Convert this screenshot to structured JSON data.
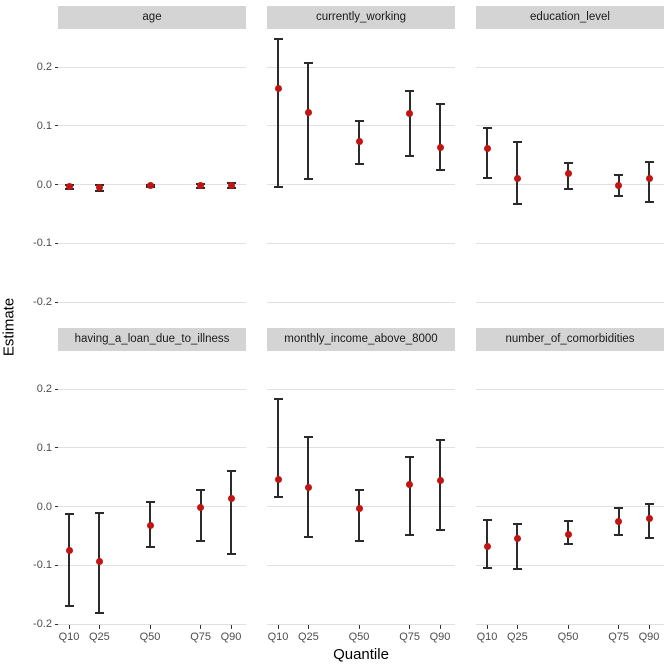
{
  "colors": {
    "point": "#C11414",
    "errorbar": "#2B2B2B",
    "gridline": "#E0E0E0",
    "strip_bg": "#D4D4D4",
    "strip_text": "#1A1A1A",
    "tick_text": "#4D4D4D",
    "tick_mark": "#333333",
    "axis_title_text": "#000000",
    "panel_bg": "#FFFFFF"
  },
  "chart_data": {
    "type": "scatter",
    "subtype": "point-estimates-with-error-bars-faceted",
    "title": "",
    "xlabel": "Quantile",
    "ylabel": "Estimate",
    "x": [
      10,
      25,
      50,
      75,
      90
    ],
    "x_labels": [
      "Q10",
      "Q25",
      "Q50",
      "Q75",
      "Q90"
    ],
    "y_ticks": [
      0.2,
      0.1,
      0.0,
      -0.1,
      -0.2
    ],
    "y_tick_labels": [
      "0.2",
      "0.1",
      "0.0",
      "-0.1",
      "-0.2"
    ],
    "ylim": [
      -0.2,
      0.265
    ],
    "grid": "horizontal-only",
    "legend": "none",
    "facet_grid": {
      "rows": 2,
      "cols": 3
    },
    "facets": [
      {
        "label": "age",
        "row": 0,
        "col": 0,
        "estimates": [
          -0.003,
          -0.005,
          -0.002,
          -0.002,
          -0.002
        ],
        "ci_low": [
          -0.007,
          -0.011,
          -0.004,
          -0.005,
          -0.006
        ],
        "ci_high": [
          0.0,
          0.0,
          0.0,
          0.001,
          0.002
        ]
      },
      {
        "label": "currently_working",
        "row": 0,
        "col": 1,
        "estimates": [
          0.163,
          0.123,
          0.074,
          0.121,
          0.063
        ],
        "ci_low": [
          -0.004,
          0.01,
          0.035,
          0.049,
          0.025
        ],
        "ci_high": [
          0.248,
          0.207,
          0.109,
          0.16,
          0.138
        ]
      },
      {
        "label": "education_level",
        "row": 0,
        "col": 2,
        "estimates": [
          0.061,
          0.01,
          0.019,
          -0.001,
          0.011
        ],
        "ci_low": [
          0.012,
          -0.033,
          -0.008,
          -0.02,
          -0.03
        ],
        "ci_high": [
          0.097,
          0.073,
          0.037,
          0.017,
          0.038
        ]
      },
      {
        "label": "having_a_loan_due_to_illness",
        "row": 1,
        "col": 0,
        "estimates": [
          -0.075,
          -0.093,
          -0.033,
          -0.002,
          0.013
        ],
        "ci_low": [
          -0.17,
          -0.182,
          -0.068,
          -0.059,
          -0.081
        ],
        "ci_high": [
          -0.013,
          -0.011,
          0.007,
          0.028,
          0.06
        ]
      },
      {
        "label": "monthly_income_above_8000",
        "row": 1,
        "col": 1,
        "estimates": [
          0.046,
          0.032,
          -0.004,
          0.038,
          0.045
        ],
        "ci_low": [
          0.017,
          -0.052,
          -0.059,
          -0.048,
          -0.04
        ],
        "ci_high": [
          0.184,
          0.118,
          0.029,
          0.084,
          0.114
        ]
      },
      {
        "label": "number_of_comorbidities",
        "row": 1,
        "col": 2,
        "estimates": [
          -0.068,
          -0.054,
          -0.048,
          -0.025,
          -0.021
        ],
        "ci_low": [
          -0.105,
          -0.106,
          -0.064,
          -0.049,
          -0.053
        ],
        "ci_high": [
          -0.023,
          -0.029,
          -0.024,
          -0.003,
          0.004
        ]
      }
    ]
  }
}
